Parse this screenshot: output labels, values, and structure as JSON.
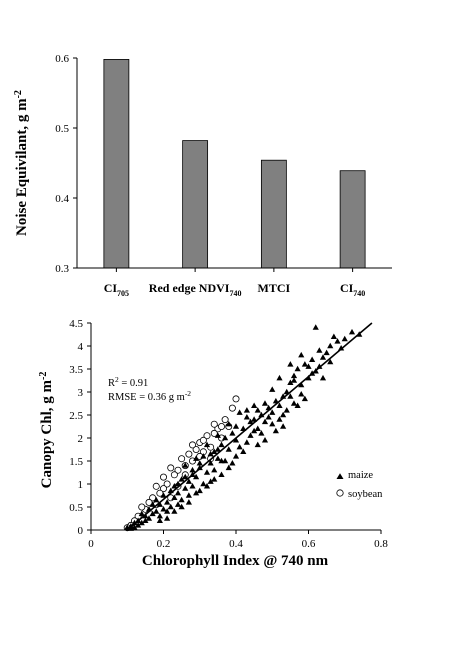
{
  "chart_data": [
    {
      "type": "bar",
      "categories": [
        {
          "base": "CI",
          "sub": "705"
        },
        {
          "base": "Red edge NDVI",
          "sub": "740"
        },
        {
          "base": "MTCI",
          "sub": ""
        },
        {
          "base": "CI",
          "sub": "740"
        }
      ],
      "values": [
        0.598,
        0.482,
        0.454,
        0.439
      ],
      "title": "",
      "xlabel": "",
      "ylabel": {
        "base": "Noise Equivilant, g m",
        "sup": "-2"
      },
      "ylim": [
        0.3,
        0.6
      ],
      "yticks": [
        "0.3",
        "0.4",
        "0.5",
        "0.6"
      ],
      "bar_color": "#808080",
      "grid": false
    },
    {
      "type": "scatter",
      "xlabel": "Chlorophyll Index @ 740 nm",
      "ylabel": {
        "base": "Canopy Chl, g m",
        "sup": "-2"
      },
      "xlim": [
        0,
        0.8
      ],
      "ylim": [
        0,
        4.5
      ],
      "xticks": [
        "0",
        "0.2",
        "0.4",
        "0.6",
        "0.8"
      ],
      "yticks": [
        "0",
        "0.5",
        "1",
        "1.5",
        "2",
        "2.5",
        "3",
        "3.5",
        "4",
        "4.5"
      ],
      "annotations": {
        "r2": {
          "base": "R",
          "sup": "2",
          "rest": " = 0.91"
        },
        "rmse": {
          "base": "RMSE = 0.36 g m",
          "sup": "-2"
        }
      },
      "fit_line": {
        "x": [
          0.1,
          0.775
        ],
        "y": [
          0.0,
          4.5
        ]
      },
      "legend_position": "right",
      "grid": false,
      "series": [
        {
          "name": "maize",
          "marker": "filled-triangle",
          "points": [
            [
              0.74,
              4.25
            ],
            [
              0.72,
              4.3
            ],
            [
              0.7,
              4.15
            ],
            [
              0.68,
              4.1
            ],
            [
              0.67,
              4.2
            ],
            [
              0.66,
              4.0
            ],
            [
              0.65,
              3.85
            ],
            [
              0.64,
              3.75
            ],
            [
              0.63,
              3.9
            ],
            [
              0.62,
              4.4
            ],
            [
              0.61,
              3.4
            ],
            [
              0.6,
              3.55
            ],
            [
              0.6,
              3.3
            ],
            [
              0.59,
              3.6
            ],
            [
              0.58,
              3.15
            ],
            [
              0.58,
              3.8
            ],
            [
              0.57,
              3.5
            ],
            [
              0.56,
              3.25
            ],
            [
              0.56,
              3.35
            ],
            [
              0.55,
              2.9
            ],
            [
              0.55,
              3.2
            ],
            [
              0.54,
              3.0
            ],
            [
              0.54,
              2.6
            ],
            [
              0.53,
              2.9
            ],
            [
              0.53,
              2.5
            ],
            [
              0.52,
              2.7
            ],
            [
              0.52,
              3.3
            ],
            [
              0.51,
              2.8
            ],
            [
              0.5,
              2.55
            ],
            [
              0.5,
              3.05
            ],
            [
              0.49,
              2.45
            ],
            [
              0.49,
              2.65
            ],
            [
              0.48,
              2.35
            ],
            [
              0.48,
              2.75
            ],
            [
              0.47,
              2.5
            ],
            [
              0.46,
              2.2
            ],
            [
              0.46,
              2.6
            ],
            [
              0.45,
              2.4
            ],
            [
              0.45,
              2.15
            ],
            [
              0.44,
              2.05
            ],
            [
              0.44,
              2.35
            ],
            [
              0.43,
              1.9
            ],
            [
              0.43,
              2.45
            ],
            [
              0.42,
              2.2
            ],
            [
              0.41,
              1.8
            ],
            [
              0.41,
              2.55
            ],
            [
              0.4,
              1.95
            ],
            [
              0.4,
              1.6
            ],
            [
              0.39,
              2.1
            ],
            [
              0.39,
              1.45
            ],
            [
              0.38,
              1.75
            ],
            [
              0.38,
              2.3
            ],
            [
              0.37,
              1.5
            ],
            [
              0.36,
              1.85
            ],
            [
              0.36,
              1.2
            ],
            [
              0.35,
              1.55
            ],
            [
              0.35,
              2.05
            ],
            [
              0.34,
              1.3
            ],
            [
              0.34,
              1.7
            ],
            [
              0.33,
              1.05
            ],
            [
              0.33,
              1.45
            ],
            [
              0.32,
              1.85
            ],
            [
              0.32,
              1.25
            ],
            [
              0.31,
              1.0
            ],
            [
              0.31,
              1.6
            ],
            [
              0.3,
              1.35
            ],
            [
              0.3,
              0.85
            ],
            [
              0.29,
              1.15
            ],
            [
              0.29,
              1.55
            ],
            [
              0.28,
              0.95
            ],
            [
              0.28,
              1.3
            ],
            [
              0.27,
              0.75
            ],
            [
              0.27,
              1.05
            ],
            [
              0.26,
              0.9
            ],
            [
              0.26,
              1.4
            ],
            [
              0.25,
              0.65
            ],
            [
              0.25,
              1.1
            ],
            [
              0.24,
              0.8
            ],
            [
              0.24,
              0.55
            ],
            [
              0.23,
              0.95
            ],
            [
              0.23,
              0.7
            ],
            [
              0.22,
              0.5
            ],
            [
              0.22,
              0.85
            ],
            [
              0.21,
              0.6
            ],
            [
              0.21,
              0.4
            ],
            [
              0.2,
              0.75
            ],
            [
              0.2,
              0.45
            ],
            [
              0.19,
              0.55
            ],
            [
              0.19,
              0.3
            ],
            [
              0.18,
              0.65
            ],
            [
              0.18,
              0.4
            ],
            [
              0.17,
              0.35
            ],
            [
              0.17,
              0.55
            ],
            [
              0.16,
              0.25
            ],
            [
              0.16,
              0.45
            ],
            [
              0.15,
              0.3
            ],
            [
              0.15,
              0.2
            ],
            [
              0.14,
              0.35
            ],
            [
              0.14,
              0.15
            ],
            [
              0.13,
              0.2
            ],
            [
              0.13,
              0.1
            ],
            [
              0.12,
              0.15
            ],
            [
              0.12,
              0.05
            ],
            [
              0.11,
              0.08
            ],
            [
              0.11,
              0.03
            ],
            [
              0.1,
              0.05
            ],
            [
              0.58,
              2.95
            ],
            [
              0.57,
              2.7
            ],
            [
              0.61,
              3.7
            ],
            [
              0.63,
              3.55
            ],
            [
              0.66,
              3.65
            ],
            [
              0.69,
              3.95
            ],
            [
              0.55,
              3.6
            ],
            [
              0.52,
              2.4
            ],
            [
              0.5,
              2.3
            ],
            [
              0.47,
              2.1
            ],
            [
              0.45,
              2.7
            ],
            [
              0.43,
              2.6
            ],
            [
              0.4,
              2.25
            ],
            [
              0.37,
              2.0
            ],
            [
              0.35,
              1.75
            ],
            [
              0.33,
              1.65
            ],
            [
              0.3,
              1.45
            ],
            [
              0.28,
              1.2
            ],
            [
              0.26,
              1.15
            ],
            [
              0.24,
              1.0
            ],
            [
              0.62,
              3.45
            ],
            [
              0.64,
              3.3
            ],
            [
              0.59,
              2.85
            ],
            [
              0.56,
              2.75
            ],
            [
              0.53,
              2.25
            ],
            [
              0.51,
              2.15
            ],
            [
              0.48,
              1.95
            ],
            [
              0.46,
              1.85
            ],
            [
              0.42,
              1.7
            ],
            [
              0.38,
              1.35
            ],
            [
              0.36,
              1.5
            ],
            [
              0.34,
              1.1
            ],
            [
              0.32,
              0.95
            ],
            [
              0.29,
              0.8
            ],
            [
              0.27,
              0.6
            ],
            [
              0.25,
              0.5
            ],
            [
              0.23,
              0.4
            ],
            [
              0.21,
              0.25
            ],
            [
              0.19,
              0.2
            ]
          ]
        },
        {
          "name": "soybean",
          "marker": "open-circle",
          "points": [
            [
              0.4,
              2.85
            ],
            [
              0.39,
              2.65
            ],
            [
              0.38,
              2.25
            ],
            [
              0.37,
              2.4
            ],
            [
              0.36,
              2.0
            ],
            [
              0.35,
              2.2
            ],
            [
              0.34,
              2.1
            ],
            [
              0.33,
              1.8
            ],
            [
              0.32,
              2.05
            ],
            [
              0.31,
              1.7
            ],
            [
              0.3,
              1.9
            ],
            [
              0.3,
              1.6
            ],
            [
              0.29,
              1.75
            ],
            [
              0.28,
              1.5
            ],
            [
              0.27,
              1.65
            ],
            [
              0.26,
              1.4
            ],
            [
              0.25,
              1.55
            ],
            [
              0.24,
              1.3
            ],
            [
              0.23,
              1.2
            ],
            [
              0.22,
              1.35
            ],
            [
              0.21,
              1.0
            ],
            [
              0.2,
              0.9
            ],
            [
              0.2,
              1.15
            ],
            [
              0.19,
              0.8
            ],
            [
              0.18,
              0.95
            ],
            [
              0.17,
              0.7
            ],
            [
              0.16,
              0.6
            ],
            [
              0.15,
              0.45
            ],
            [
              0.14,
              0.5
            ],
            [
              0.13,
              0.3
            ],
            [
              0.12,
              0.2
            ],
            [
              0.11,
              0.1
            ],
            [
              0.1,
              0.05
            ],
            [
              0.34,
              2.3
            ],
            [
              0.36,
              2.25
            ],
            [
              0.31,
              1.95
            ],
            [
              0.28,
              1.85
            ],
            [
              0.26,
              1.2
            ],
            [
              0.24,
              0.95
            ],
            [
              0.22,
              0.7
            ],
            [
              0.18,
              0.55
            ],
            [
              0.33,
              1.55
            ]
          ]
        }
      ]
    }
  ]
}
